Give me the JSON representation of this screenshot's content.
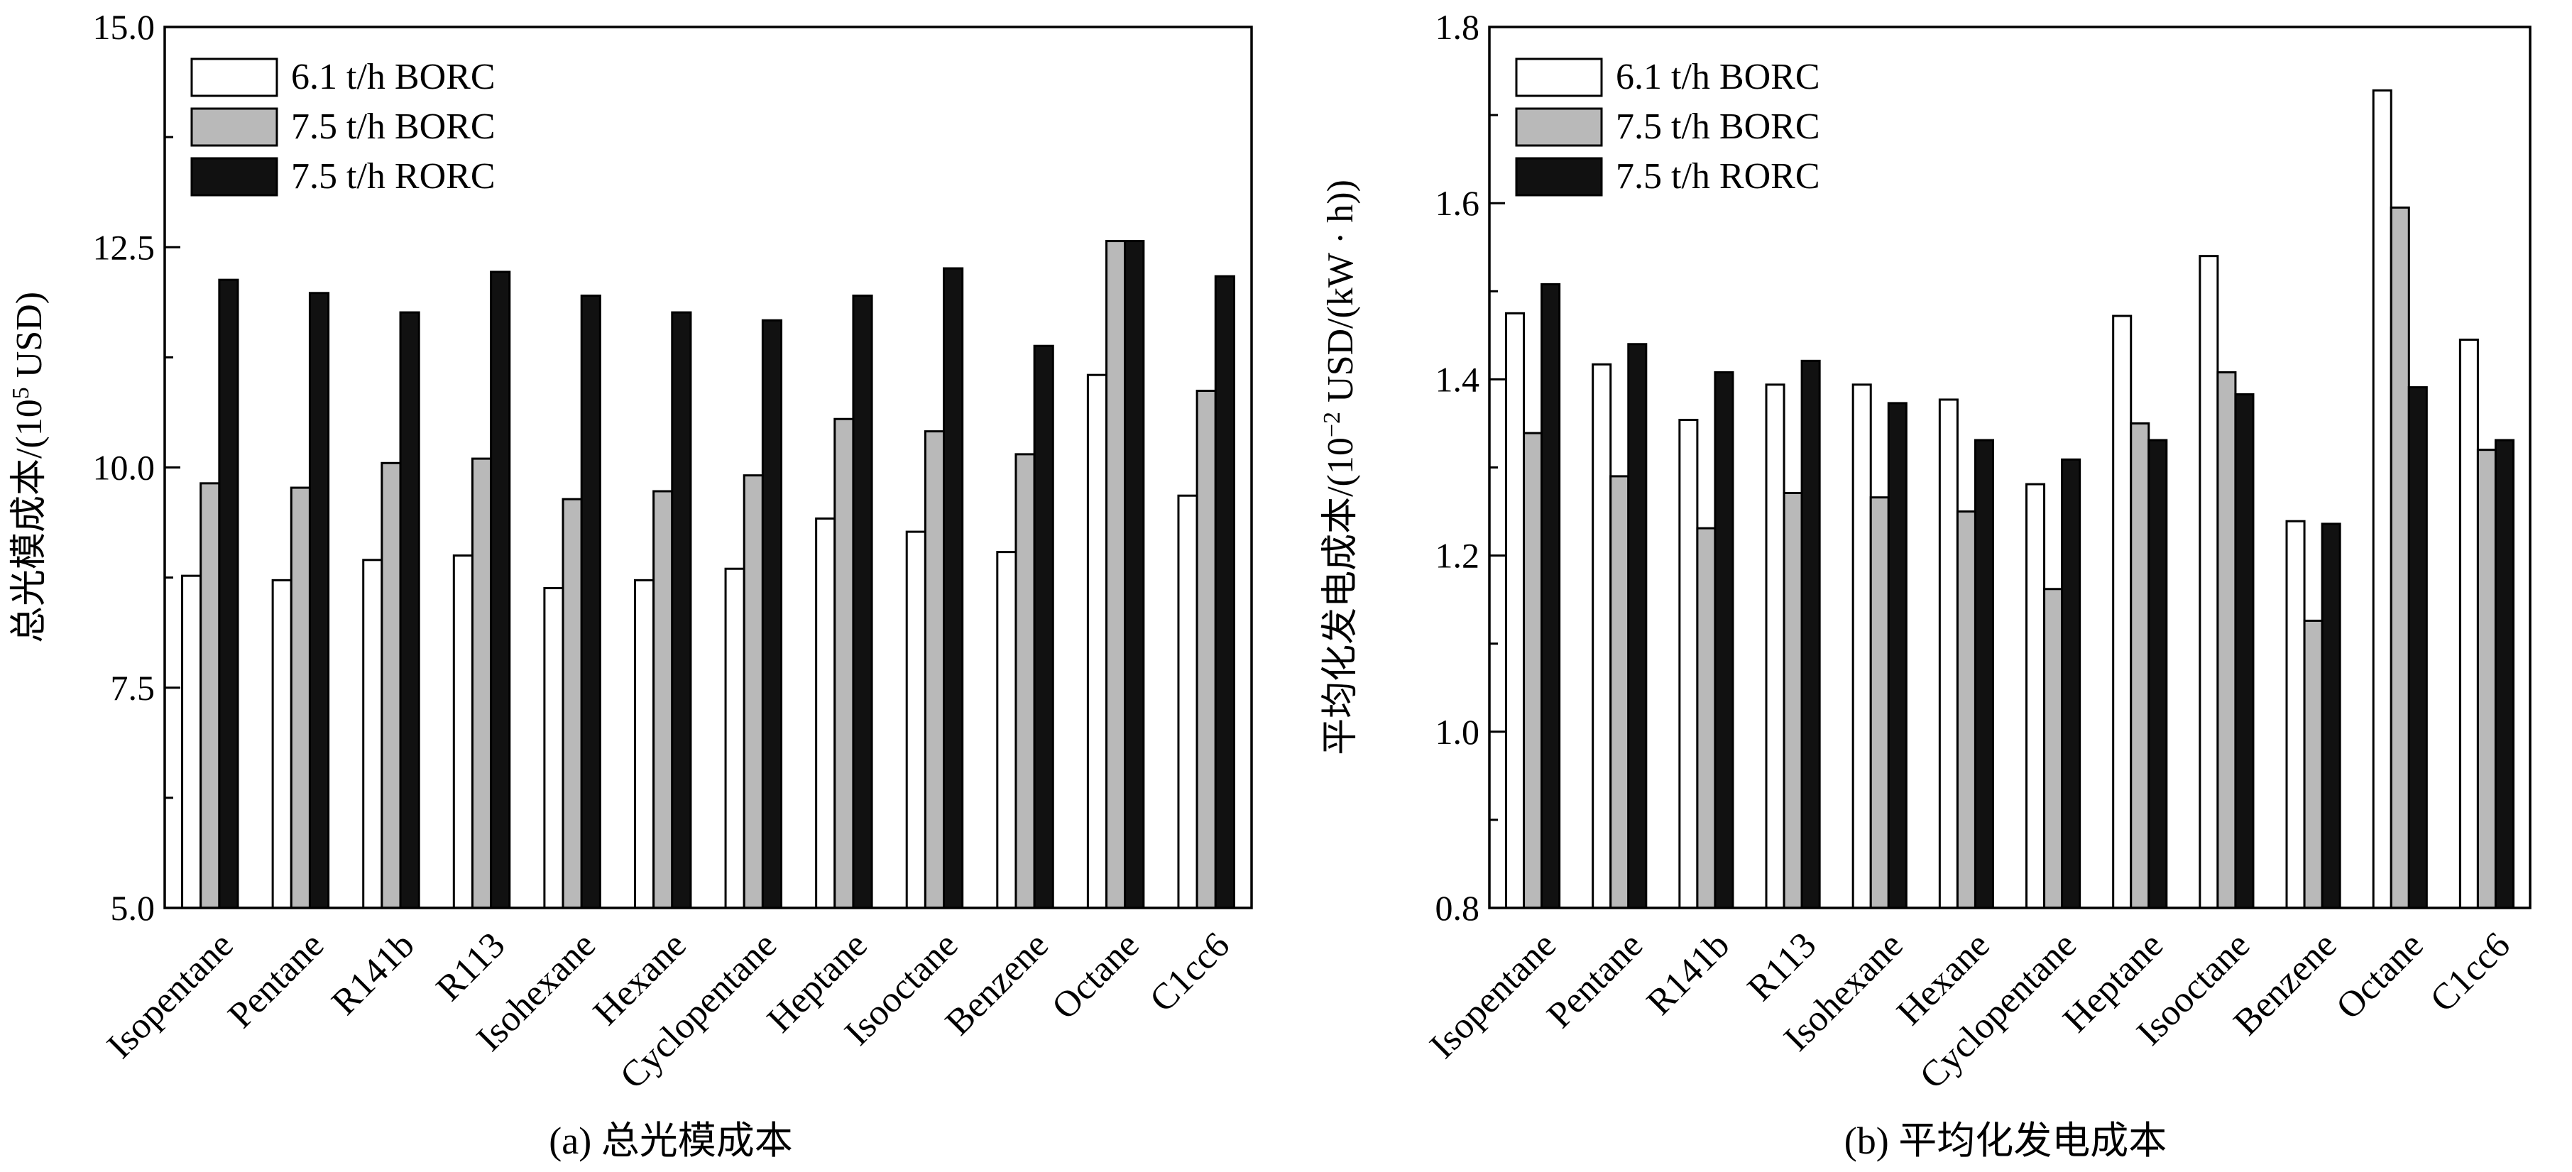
{
  "charts": [
    {
      "title": "(a) 总光模成本",
      "ylabel_main": "总光模成本/(10",
      "ylabel_sup": "5",
      "ylabel_tail": " USD)",
      "ylim": [
        5.0,
        15.0
      ],
      "major_ticks": [
        5.0,
        7.5,
        10.0,
        12.5,
        15.0
      ],
      "tick_labels": [
        "5.0",
        "7.5",
        "10.0",
        "12.5",
        "15.0"
      ],
      "minor_step": 1.25
    },
    {
      "title": "(b) 平均化发电成本",
      "ylabel_main": "平均化发电成本/(10",
      "ylabel_sup": "−2",
      "ylabel_tail": " USD/(kW · h))",
      "ylim": [
        0.8,
        1.8
      ],
      "major_ticks": [
        0.8,
        1.0,
        1.2,
        1.4,
        1.6,
        1.8
      ],
      "tick_labels": [
        "0.8",
        "1.0",
        "1.2",
        "1.4",
        "1.6",
        "1.8"
      ],
      "minor_step": 0.1
    }
  ],
  "legend": [
    {
      "label": "6.1 t/h  BORC",
      "color": "#ffffff"
    },
    {
      "label": "7.5 t/h  BORC",
      "color": "#b9b9b9"
    },
    {
      "label": "7.5 t/h  RORC",
      "color": "#111111"
    }
  ],
  "chart_data": [
    {
      "type": "bar",
      "title": "(a) 总光模成本",
      "ylabel": "总光模成本/(10^5 USD)",
      "xlabel": "",
      "ylim": [
        5.0,
        15.0
      ],
      "categories": [
        "Isopentane",
        "Pentane",
        "R141b",
        "R113",
        "Isohexane",
        "Hexane",
        "Cyclopentane",
        "Heptane",
        "Isooctane",
        "Benzene",
        "Octane",
        "C1cc6"
      ],
      "series": [
        {
          "name": "6.1 t/h  BORC",
          "values": [
            8.77,
            8.72,
            8.95,
            9.0,
            8.63,
            8.72,
            8.85,
            9.42,
            9.27,
            9.04,
            11.05,
            9.68
          ]
        },
        {
          "name": "7.5 t/h  BORC",
          "values": [
            9.82,
            9.77,
            10.05,
            10.1,
            9.64,
            9.73,
            9.91,
            10.55,
            10.41,
            10.15,
            12.57,
            10.87
          ]
        },
        {
          "name": "7.5 t/h  RORC",
          "values": [
            12.13,
            11.98,
            11.76,
            12.22,
            11.95,
            11.76,
            11.67,
            11.95,
            12.26,
            11.38,
            12.57,
            12.17
          ]
        }
      ],
      "legend_position": "top-left"
    },
    {
      "type": "bar",
      "title": "(b) 平均化发电成本",
      "ylabel": "平均化发电成本/(10^−2 USD/(kW · h))",
      "xlabel": "",
      "ylim": [
        0.8,
        1.8
      ],
      "categories": [
        "Isopentane",
        "Pentane",
        "R141b",
        "R113",
        "Isohexane",
        "Hexane",
        "Cyclopentane",
        "Heptane",
        "Isooctane",
        "Benzene",
        "Octane",
        "C1cc6"
      ],
      "series": [
        {
          "name": "6.1 t/h  BORC",
          "values": [
            1.475,
            1.417,
            1.354,
            1.394,
            1.394,
            1.377,
            1.281,
            1.472,
            1.54,
            1.239,
            1.728,
            1.445
          ]
        },
        {
          "name": "7.5 t/h  BORC",
          "values": [
            1.339,
            1.29,
            1.231,
            1.271,
            1.266,
            1.25,
            1.162,
            1.35,
            1.408,
            1.126,
            1.595,
            1.32
          ]
        },
        {
          "name": "7.5 t/h  RORC",
          "values": [
            1.508,
            1.44,
            1.408,
            1.421,
            1.373,
            1.331,
            1.309,
            1.331,
            1.383,
            1.236,
            1.391,
            1.331
          ]
        }
      ],
      "legend_position": "top-left"
    }
  ]
}
